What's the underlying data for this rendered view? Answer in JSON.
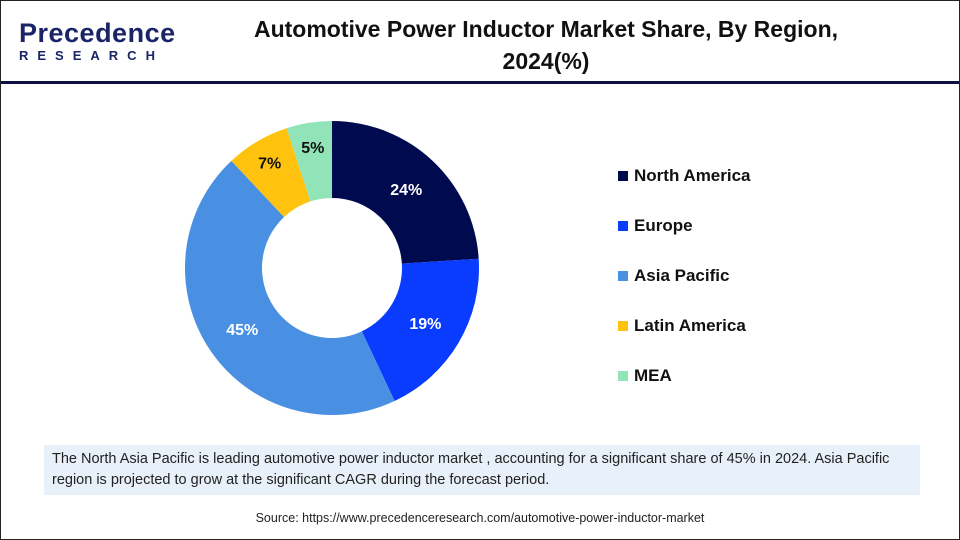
{
  "logo": {
    "top": "Precedence",
    "bottom": "RESEARCH"
  },
  "title": "Automotive Power Inductor Market Share, By Region, 2024(%)",
  "chart_data": {
    "type": "pie",
    "donut": true,
    "categories": [
      "North America",
      "Europe",
      "Asia Pacific",
      "Latin America",
      "MEA"
    ],
    "values": [
      24,
      19,
      45,
      7,
      5
    ],
    "labels": [
      "24%",
      "19%",
      "45%",
      "7%",
      "5%"
    ],
    "colors": [
      "#000a4f",
      "#0a3cff",
      "#4a90e2",
      "#ffc20e",
      "#90e4b8"
    ],
    "label_colors": [
      "#ffffff",
      "#ffffff",
      "#ffffff",
      "#111111",
      "#111111"
    ],
    "legend_position": "right"
  },
  "note": "The North Asia Pacific is leading automotive power inductor market , accounting for a significant share of 45% in 2024. Asia Pacific region is projected to grow at the significant CAGR during the forecast period.",
  "source": "Source: https://www.precedenceresearch.com/automotive-power-inductor-market"
}
